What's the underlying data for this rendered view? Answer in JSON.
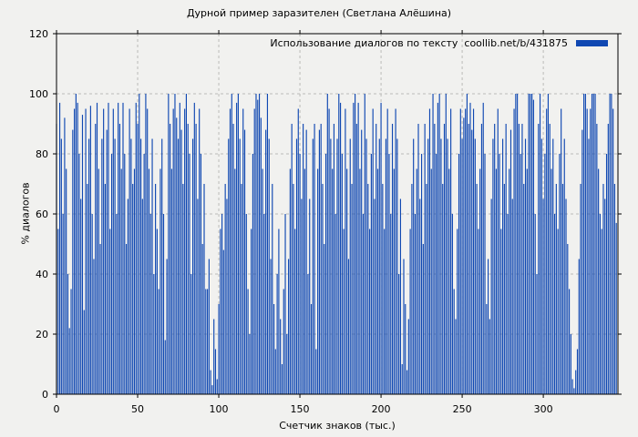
{
  "chart_data": {
    "type": "bar",
    "title": "Дурной пример заразителен (Светлана Алёшина)",
    "legend": "Использование диалогов по тексту  coollib.net/b/431875",
    "xlabel": "Счетчик знаков (тыс.)",
    "ylabel": "% диалогов",
    "xlim": [
      0,
      346
    ],
    "ylim": [
      0,
      120
    ],
    "xticks": [
      0,
      50,
      100,
      150,
      200,
      250,
      300
    ],
    "yticks": [
      0,
      20,
      40,
      60,
      80,
      100,
      120
    ],
    "grid": true,
    "legend_position": "top-right-inside",
    "bar_color": "#1048b2",
    "background_color": "#f1f1ef",
    "grid_color": "#bbbbb8",
    "border_color": "#000000",
    "x_step": 1,
    "values": [
      90,
      55,
      97,
      85,
      60,
      92,
      75,
      40,
      22,
      35,
      88,
      95,
      100,
      97,
      80,
      65,
      93,
      28,
      95,
      70,
      85,
      96,
      60,
      45,
      90,
      97,
      75,
      50,
      85,
      95,
      70,
      88,
      97,
      55,
      80,
      95,
      85,
      60,
      97,
      90,
      75,
      97,
      80,
      50,
      65,
      95,
      85,
      70,
      75,
      97,
      90,
      100,
      85,
      65,
      80,
      100,
      95,
      75,
      60,
      85,
      40,
      70,
      55,
      35,
      75,
      85,
      60,
      18,
      45,
      100,
      90,
      75,
      95,
      100,
      92,
      85,
      97,
      88,
      70,
      95,
      100,
      90,
      80,
      40,
      85,
      97,
      90,
      65,
      95,
      80,
      50,
      70,
      35,
      35,
      45,
      8,
      3,
      25,
      15,
      5,
      30,
      55,
      60,
      48,
      70,
      65,
      85,
      95,
      100,
      90,
      75,
      97,
      100,
      85,
      70,
      95,
      88,
      60,
      35,
      20,
      55,
      80,
      95,
      100,
      98,
      100,
      92,
      75,
      60,
      88,
      100,
      85,
      45,
      70,
      30,
      15,
      40,
      55,
      25,
      10,
      35,
      60,
      20,
      45,
      75,
      90,
      70,
      55,
      85,
      95,
      80,
      65,
      90,
      75,
      88,
      40,
      65,
      30,
      85,
      90,
      15,
      75,
      88,
      90,
      70,
      50,
      80,
      100,
      95,
      85,
      75,
      90,
      60,
      85,
      100,
      97,
      80,
      55,
      95,
      75,
      45,
      85,
      70,
      97,
      100,
      90,
      97,
      75,
      88,
      60,
      100,
      85,
      70,
      55,
      80,
      95,
      65,
      90,
      75,
      85,
      97,
      70,
      55,
      85,
      95,
      80,
      60,
      90,
      75,
      95,
      85,
      40,
      65,
      10,
      45,
      30,
      8,
      25,
      55,
      70,
      85,
      60,
      75,
      90,
      65,
      80,
      50,
      90,
      70,
      85,
      95,
      75,
      100,
      90,
      80,
      97,
      100,
      85,
      70,
      90,
      100,
      85,
      75,
      95,
      60,
      35,
      25,
      55,
      80,
      95,
      85,
      92,
      95,
      100,
      90,
      97,
      88,
      95,
      85,
      70,
      55,
      75,
      90,
      97,
      80,
      30,
      45,
      25,
      65,
      85,
      90,
      75,
      95,
      80,
      55,
      85,
      70,
      90,
      60,
      75,
      88,
      65,
      95,
      100,
      100,
      90,
      80,
      90,
      70,
      85,
      75,
      100,
      100,
      100,
      98,
      60,
      40,
      90,
      100,
      85,
      65,
      80,
      95,
      100,
      90,
      75,
      85,
      60,
      70,
      55,
      80,
      95,
      70,
      85,
      65,
      50,
      35,
      20,
      5,
      2,
      8,
      15,
      45,
      70,
      88,
      100,
      100,
      95,
      85,
      95,
      100,
      100,
      100,
      90,
      75,
      60,
      55,
      70,
      65,
      80,
      90,
      100,
      100,
      95,
      70,
      57
    ]
  }
}
